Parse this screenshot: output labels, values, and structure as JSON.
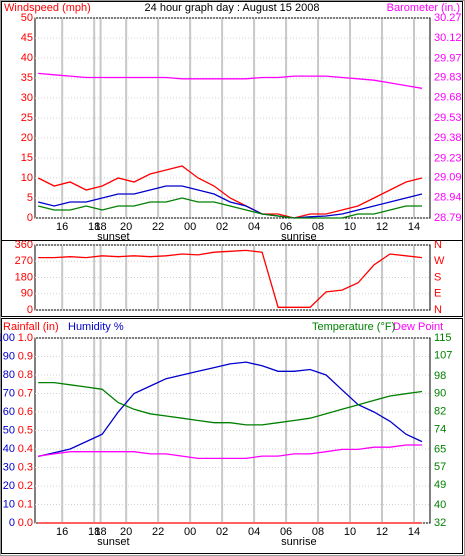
{
  "chart_data": [
    {
      "type": "line",
      "title": "24 hour graph day : August 15 2008",
      "ylabel": "Windspeed (mph)",
      "y2label": "Barometer (in.)",
      "axis_colors": {
        "y": "#ff0000",
        "y2": "#ff00ff"
      },
      "x": [
        14.5,
        15.5,
        16.5,
        17.5,
        18.5,
        19.5,
        20.5,
        21.5,
        22.5,
        23.5,
        24.5,
        25.5,
        26.5,
        27.5,
        28.5,
        29.5,
        30.5,
        31.5,
        32.5,
        33.5,
        34.5,
        35.5,
        36.5,
        37.5,
        38.5
      ],
      "xlim": [
        14.3,
        39
      ],
      "xticks": [
        16,
        18,
        {
          "value": 18.4,
          "label": "18"
        },
        20,
        22,
        {
          "value": 24,
          "label": "00"
        },
        {
          "value": 26,
          "label": "02"
        },
        {
          "value": 28,
          "label": "04"
        },
        {
          "value": 30,
          "label": "06"
        },
        {
          "value": 32,
          "label": "08"
        },
        {
          "value": 34,
          "label": "10"
        },
        {
          "value": 36,
          "label": "12"
        },
        {
          "value": 38,
          "label": "14"
        }
      ],
      "ylim": [
        0,
        50
      ],
      "yticks": [
        0,
        5,
        10,
        15,
        20,
        25,
        30,
        35,
        40,
        45,
        50
      ],
      "y2lim": [
        28.79,
        30.27
      ],
      "y2ticks": [
        28.79,
        28.94,
        29.09,
        29.23,
        29.38,
        29.53,
        29.68,
        29.83,
        29.97,
        30.12,
        30.27
      ],
      "grid": true,
      "annotations": [
        {
          "text": "sunset",
          "x": 19.2
        },
        {
          "text": "sunrise",
          "x": 30.8
        }
      ],
      "series": [
        {
          "color": "#ff0000",
          "values": [
            10,
            8,
            9,
            7,
            8,
            10,
            9,
            11,
            12,
            13,
            10,
            8,
            5,
            3,
            1,
            1,
            0,
            1,
            1,
            2,
            3,
            5,
            7,
            9,
            10
          ]
        },
        {
          "color": "#0000cc",
          "values": [
            4,
            3,
            4,
            4,
            5,
            6,
            6,
            7,
            8,
            8,
            7,
            6,
            4,
            3,
            1,
            0.5,
            0,
            0.3,
            0.5,
            1,
            2,
            3,
            4,
            5,
            6
          ]
        },
        {
          "color": "#008000",
          "values": [
            3,
            2,
            2,
            3,
            2,
            3,
            3,
            4,
            4,
            5,
            4,
            4,
            3,
            2,
            1,
            0.5,
            0,
            0,
            0,
            0,
            1,
            1,
            2,
            3,
            3
          ]
        },
        {
          "color": "#ff00ff",
          "axis": "y2",
          "values": [
            29.86,
            29.85,
            29.84,
            29.83,
            29.83,
            29.83,
            29.83,
            29.83,
            29.83,
            29.82,
            29.82,
            29.82,
            29.82,
            29.82,
            29.83,
            29.83,
            29.84,
            29.84,
            29.84,
            29.83,
            29.82,
            29.81,
            29.79,
            29.77,
            29.75
          ]
        }
      ]
    },
    {
      "type": "line",
      "axis_colors": {
        "y": "#ff0000",
        "y2": "#ff0000"
      },
      "x": [
        14.5,
        15.5,
        16.5,
        17.5,
        18.5,
        19.5,
        20.5,
        21.5,
        22.5,
        23.5,
        24.5,
        25.5,
        26.5,
        27.5,
        28.5,
        29.5,
        30.5,
        31.5,
        32.5,
        33.5,
        34.5,
        35.5,
        36.5,
        37.5,
        38.5
      ],
      "xlim": [
        14.3,
        39
      ],
      "xticks": [
        16,
        18,
        18.4,
        20,
        22,
        24,
        26,
        28,
        30,
        32,
        34,
        36,
        38
      ],
      "show_x_tick_labels": false,
      "ylim": [
        0,
        360
      ],
      "yticks": [
        0,
        90,
        180,
        270,
        360
      ],
      "y2lim": [
        0,
        360
      ],
      "y2ticks": [
        {
          "value": 360,
          "label": "N"
        },
        {
          "value": 270,
          "label": "W"
        },
        {
          "value": 180,
          "label": "S"
        },
        {
          "value": 90,
          "label": "E"
        },
        {
          "value": 0,
          "label": "N"
        }
      ],
      "grid": true,
      "series": [
        {
          "color": "#ff0000",
          "values": [
            290,
            290,
            295,
            290,
            300,
            295,
            300,
            295,
            300,
            310,
            305,
            320,
            325,
            330,
            320,
            15,
            15,
            15,
            100,
            110,
            150,
            250,
            310,
            300,
            290
          ]
        }
      ]
    },
    {
      "type": "line",
      "ylabel": "Rainfall (in)",
      "y3label": "Humidity %",
      "y2label": "Temperature (°F)",
      "axis_colors": {
        "y": "#ff0000",
        "y2": "#008000",
        "y3": "#0000cc"
      },
      "x": [
        14.5,
        15.5,
        16.5,
        17.5,
        18.5,
        19.5,
        20.5,
        21.5,
        22.5,
        23.5,
        24.5,
        25.5,
        26.5,
        27.5,
        28.5,
        29.5,
        30.5,
        31.5,
        32.5,
        33.5,
        34.5,
        35.5,
        36.5,
        37.5,
        38.5
      ],
      "xlim": [
        14.3,
        39
      ],
      "xticks": [
        16,
        18,
        {
          "value": 18.4,
          "label": "18"
        },
        20,
        22,
        {
          "value": 24,
          "label": "00"
        },
        {
          "value": 26,
          "label": "02"
        },
        {
          "value": 28,
          "label": "04"
        },
        {
          "value": 30,
          "label": "06"
        },
        {
          "value": 32,
          "label": "08"
        },
        {
          "value": 34,
          "label": "10"
        },
        {
          "value": 36,
          "label": "12"
        },
        {
          "value": 38,
          "label": "14"
        }
      ],
      "ylim": [
        0,
        1
      ],
      "yticks": [
        {
          "value": 0,
          "label": "0.0"
        },
        0.1,
        0.2,
        0.3,
        0.4,
        0.5,
        0.6,
        0.7,
        0.8,
        0.9,
        {
          "value": 1,
          "label": "1.0"
        }
      ],
      "y3lim": [
        0,
        100
      ],
      "y3ticks": [
        0,
        10,
        20,
        30,
        40,
        50,
        60,
        70,
        80,
        90,
        100
      ],
      "y2lim": [
        32,
        115
      ],
      "y2ticks": [
        32,
        40,
        49,
        57,
        65,
        74,
        82,
        90,
        98,
        107,
        115
      ],
      "grid": true,
      "annotations": [
        {
          "text": "sunset",
          "x": 19.2
        },
        {
          "text": "sunrise",
          "x": 30.8
        }
      ],
      "series": [
        {
          "color": "#ff0000",
          "values": [
            0,
            0,
            0,
            0,
            0,
            0,
            0,
            0,
            0,
            0,
            0,
            0,
            0,
            0,
            0,
            0,
            0,
            0,
            0,
            0,
            0,
            0,
            0,
            0,
            0
          ]
        },
        {
          "color": "#0000cc",
          "axis": "y3",
          "values": [
            36,
            38,
            40,
            44,
            48,
            60,
            70,
            74,
            78,
            80,
            82,
            84,
            86,
            87,
            85,
            82,
            82,
            83,
            80,
            72,
            64,
            60,
            55,
            48,
            44
          ]
        },
        {
          "color": "#008000",
          "axis": "y2",
          "values": [
            95,
            95,
            94,
            93,
            92,
            86,
            83,
            81,
            80,
            79,
            78,
            77,
            77,
            76,
            76,
            77,
            78,
            79,
            81,
            83,
            85,
            87,
            89,
            90,
            91
          ]
        },
        {
          "name": "Dew Point",
          "color": "#ff00ff",
          "axis": "y2",
          "values": [
            62,
            63,
            64,
            64,
            64,
            64,
            64,
            63,
            63,
            62,
            61,
            61,
            61,
            61,
            62,
            62,
            63,
            63,
            64,
            65,
            65,
            66,
            66,
            67,
            67
          ]
        }
      ]
    }
  ]
}
